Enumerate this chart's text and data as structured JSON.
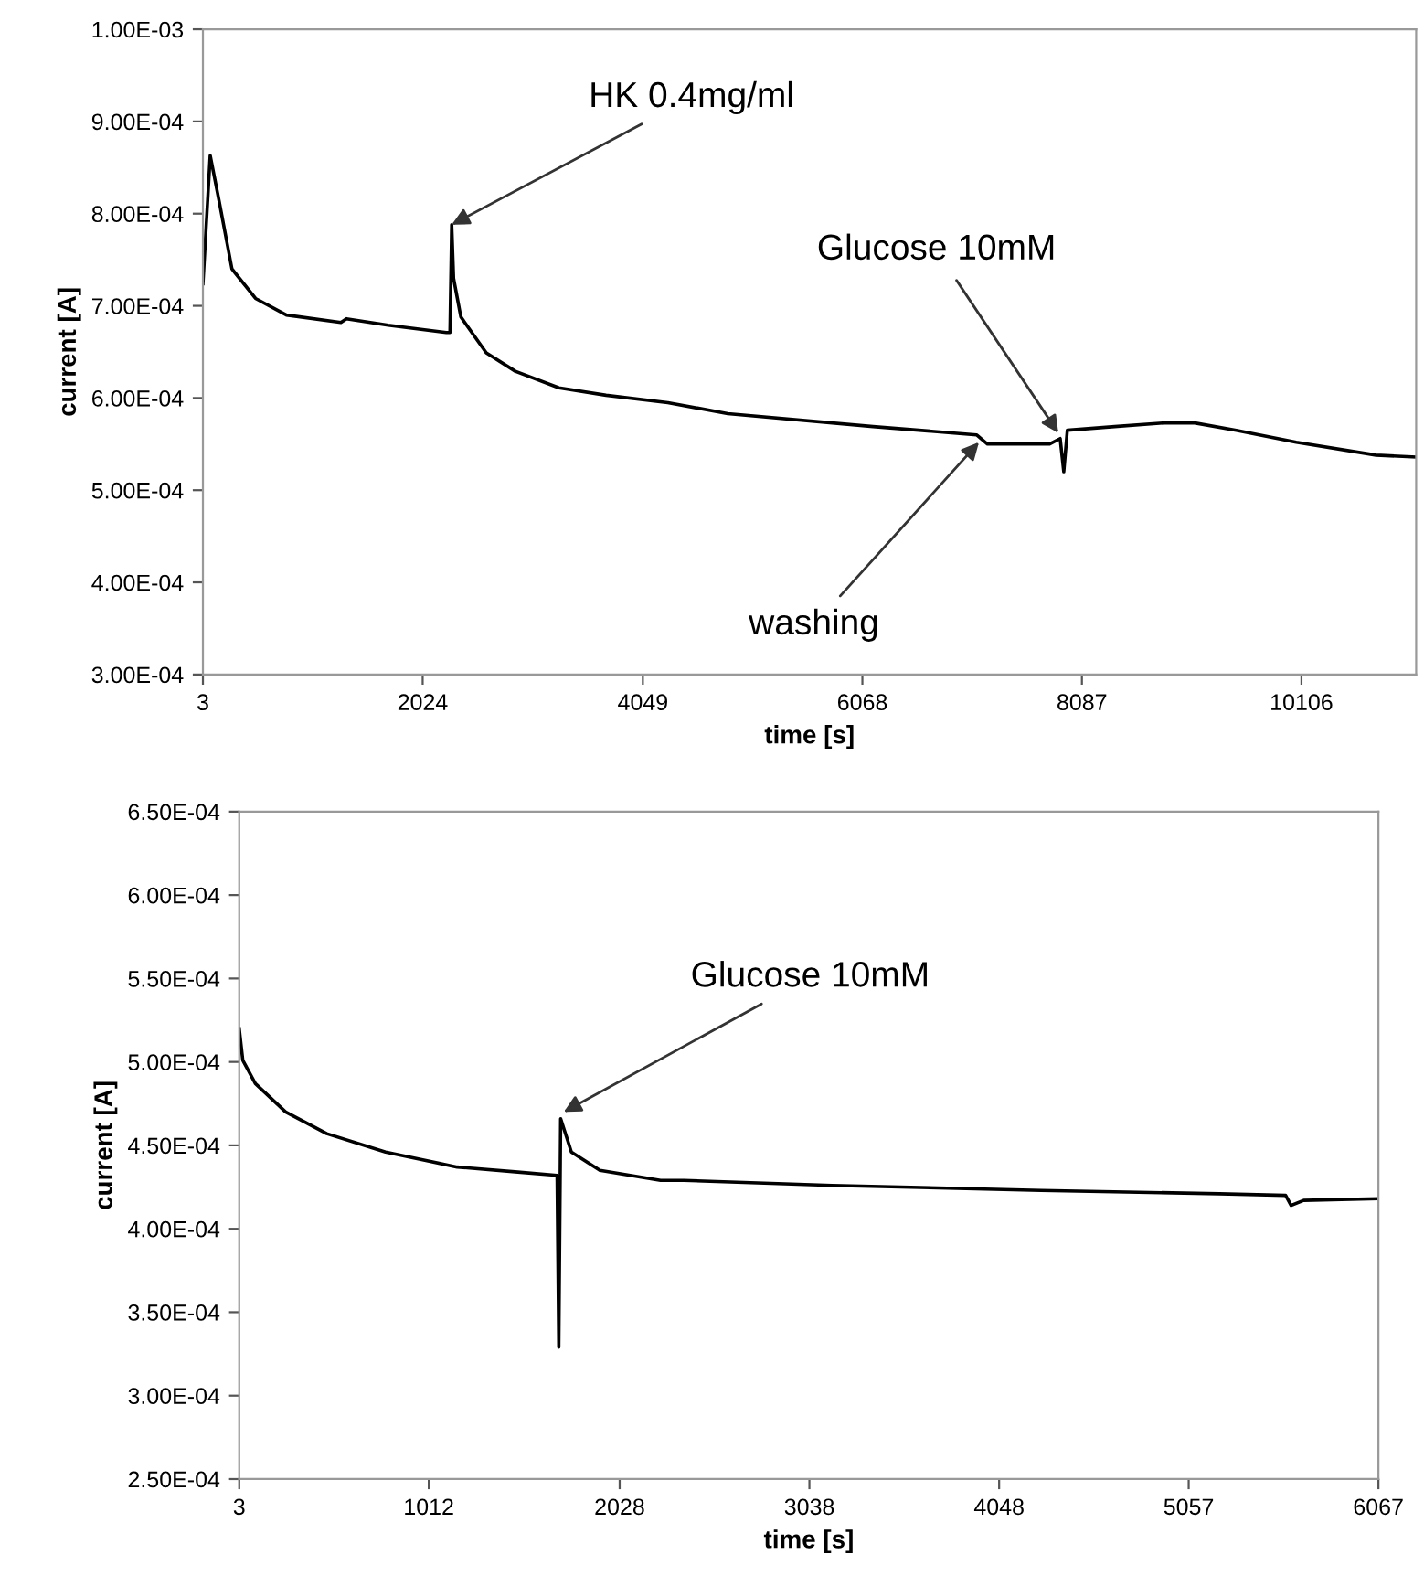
{
  "chart_data": [
    {
      "type": "line",
      "xlabel": "time [s]",
      "ylabel": "current [A]",
      "x": [
        3,
        70,
        153,
        270,
        487,
        771,
        1272,
        1323,
        1707,
        2241,
        2275,
        2291,
        2308,
        2375,
        2609,
        2876,
        3277,
        3711,
        4279,
        4830,
        6166,
        7118,
        7219,
        7787,
        7887,
        7920,
        7953,
        8388,
        8839,
        9123,
        9507,
        10058,
        10793,
        11161
      ],
      "series": [
        {
          "color": "#000000",
          "values": [
            0.000724,
            0.000863,
            0.000813,
            0.00074,
            0.000708,
            0.00069,
            0.000682,
            0.000686,
            0.000679,
            0.000671,
            0.000671,
            0.000788,
            0.00073,
            0.000688,
            0.000649,
            0.000629,
            0.000611,
            0.000603,
            0.000595,
            0.000583,
            0.000569,
            0.00056,
            0.00055,
            0.00055,
            0.000556,
            0.00052,
            0.000565,
            0.000569,
            0.000573,
            0.000573,
            0.000565,
            0.000552,
            0.000538,
            0.000536
          ]
        }
      ],
      "xlim": [
        3,
        11161
      ],
      "xticks": [
        3,
        2024,
        4049,
        6068,
        8087,
        10106
      ],
      "ylim": [
        0.0003,
        0.001
      ],
      "yticks": [
        {
          "value": 0.0003,
          "label": "3.00E-04"
        },
        {
          "value": 0.0004,
          "label": "4.00E-04"
        },
        {
          "value": 0.0005,
          "label": "5.00E-04"
        },
        {
          "value": 0.0006,
          "label": "6.00E-04"
        },
        {
          "value": 0.0007,
          "label": "7.00E-04"
        },
        {
          "value": 0.0008,
          "label": "8.00E-04"
        },
        {
          "value": 0.0009,
          "label": "9.00E-04"
        },
        {
          "value": 0.001,
          "label": "1.00E-03"
        }
      ],
      "annotations": [
        {
          "text": "HK 0.4mg/ml",
          "x": 2291,
          "y": 0.000788
        },
        {
          "text": "Glucose 10mM",
          "x": 7870,
          "y": 0.000562
        },
        {
          "text": "washing",
          "x": 7140,
          "y": 0.000552
        }
      ],
      "grid": false,
      "legend": false,
      "marker": "none",
      "line_style": "solid"
    },
    {
      "type": "line",
      "xlabel": "time [s]",
      "ylabel": "current [A]",
      "x": [
        3,
        22,
        89,
        250,
        469,
        782,
        1163,
        1486,
        1695,
        1704,
        1714,
        1771,
        1923,
        2246,
        2370,
        3159,
        4271,
        5221,
        5573,
        5602,
        5669,
        6067
      ],
      "series": [
        {
          "color": "#000000",
          "values": [
            0.00052,
            0.000501,
            0.000487,
            0.00047,
            0.000457,
            0.000446,
            0.000437,
            0.000434,
            0.000432,
            0.000329,
            0.000466,
            0.000446,
            0.000435,
            0.000429,
            0.000429,
            0.000426,
            0.000423,
            0.000421,
            0.00042,
            0.000414,
            0.000417,
            0.000418
          ]
        }
      ],
      "xlim": [
        3,
        6067
      ],
      "xticks": [
        3,
        1012,
        2028,
        3038,
        4048,
        5057,
        6067
      ],
      "ylim": [
        0.00025,
        0.00065
      ],
      "yticks": [
        {
          "value": 0.00025,
          "label": "2.50E-04"
        },
        {
          "value": 0.0003,
          "label": "3.00E-04"
        },
        {
          "value": 0.00035,
          "label": "3.50E-04"
        },
        {
          "value": 0.0004,
          "label": "4.00E-04"
        },
        {
          "value": 0.00045,
          "label": "4.50E-04"
        },
        {
          "value": 0.0005,
          "label": "5.00E-04"
        },
        {
          "value": 0.00055,
          "label": "5.50E-04"
        },
        {
          "value": 0.0006,
          "label": "6.00E-04"
        },
        {
          "value": 0.00065,
          "label": "6.50E-04"
        }
      ],
      "annotations": [
        {
          "text": "Glucose 10mM",
          "x": 1730,
          "y": 0.00047
        }
      ],
      "grid": false,
      "legend": false,
      "marker": "none",
      "line_style": "solid"
    }
  ]
}
